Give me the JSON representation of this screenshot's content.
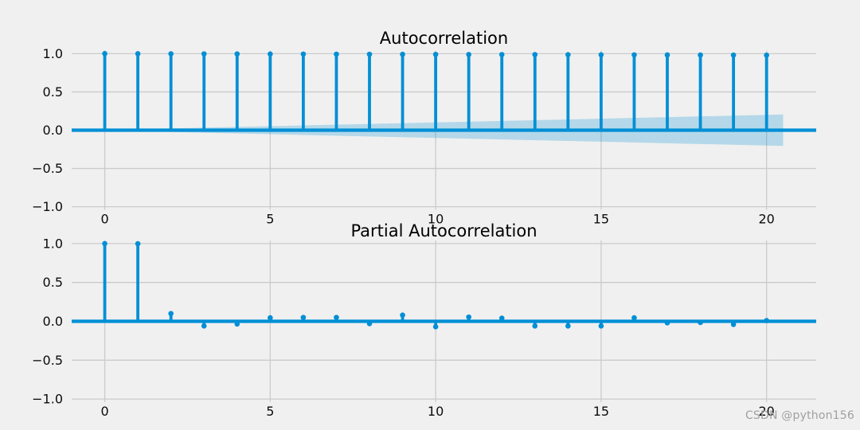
{
  "figure": {
    "background": "#f0f0f0",
    "accent_blue": "#008fd5",
    "grid_color": "#cbcbcb",
    "text_color": "#0b0b0b",
    "band_opacity": 0.25
  },
  "watermark": {
    "text": "CSDN @python156",
    "color": "#a0a0a4"
  },
  "chart_data": [
    {
      "type": "stem",
      "title": "Autocorrelation",
      "xlabel": "",
      "ylabel": "",
      "xlim": [
        -1,
        21.5
      ],
      "ylim": [
        -1.04,
        1.04
      ],
      "grid": true,
      "legend": "none",
      "xticks": [
        0,
        5,
        10,
        15,
        20
      ],
      "xtick_labels": [
        "0",
        "5",
        "10",
        "15",
        "20"
      ],
      "yticks": [
        1.0,
        0.5,
        0.0,
        -0.5,
        -1.0
      ],
      "ytick_labels": [
        "1.0",
        "0.5",
        "0.0",
        "−0.5",
        "−1.0"
      ],
      "x": [
        0,
        1,
        2,
        3,
        4,
        5,
        6,
        7,
        8,
        9,
        10,
        11,
        12,
        13,
        14,
        15,
        16,
        17,
        18,
        19,
        20
      ],
      "values": [
        1.0,
        0.999,
        0.998,
        0.997,
        0.996,
        0.995,
        0.994,
        0.993,
        0.992,
        0.991,
        0.99,
        0.989,
        0.988,
        0.987,
        0.986,
        0.985,
        0.984,
        0.983,
        0.982,
        0.981,
        0.98
      ],
      "confidence_band": {
        "x_start": 0.5,
        "x_end": 20.5,
        "half_width_start": 0.008,
        "half_width_end": 0.205
      }
    },
    {
      "type": "stem",
      "title": "Partial Autocorrelation",
      "xlabel": "",
      "ylabel": "",
      "xlim": [
        -1,
        21.5
      ],
      "ylim": [
        -1.04,
        1.04
      ],
      "grid": true,
      "legend": "none",
      "xticks": [
        0,
        5,
        10,
        15,
        20
      ],
      "xtick_labels": [
        "0",
        "5",
        "10",
        "15",
        "20"
      ],
      "yticks": [
        1.0,
        0.5,
        0.0,
        -0.5,
        -1.0
      ],
      "ytick_labels": [
        "1.0",
        "0.5",
        "0.0",
        "−0.5",
        "−1.0"
      ],
      "x": [
        0,
        1,
        2,
        3,
        4,
        5,
        6,
        7,
        8,
        9,
        10,
        11,
        12,
        13,
        14,
        15,
        16,
        17,
        18,
        19,
        20
      ],
      "values": [
        1.0,
        0.998,
        0.1,
        -0.06,
        -0.035,
        0.045,
        0.05,
        0.05,
        -0.03,
        0.08,
        -0.07,
        0.055,
        0.04,
        -0.06,
        -0.06,
        -0.06,
        0.045,
        -0.02,
        -0.015,
        -0.04,
        0.01
      ],
      "confidence_band": null
    }
  ]
}
